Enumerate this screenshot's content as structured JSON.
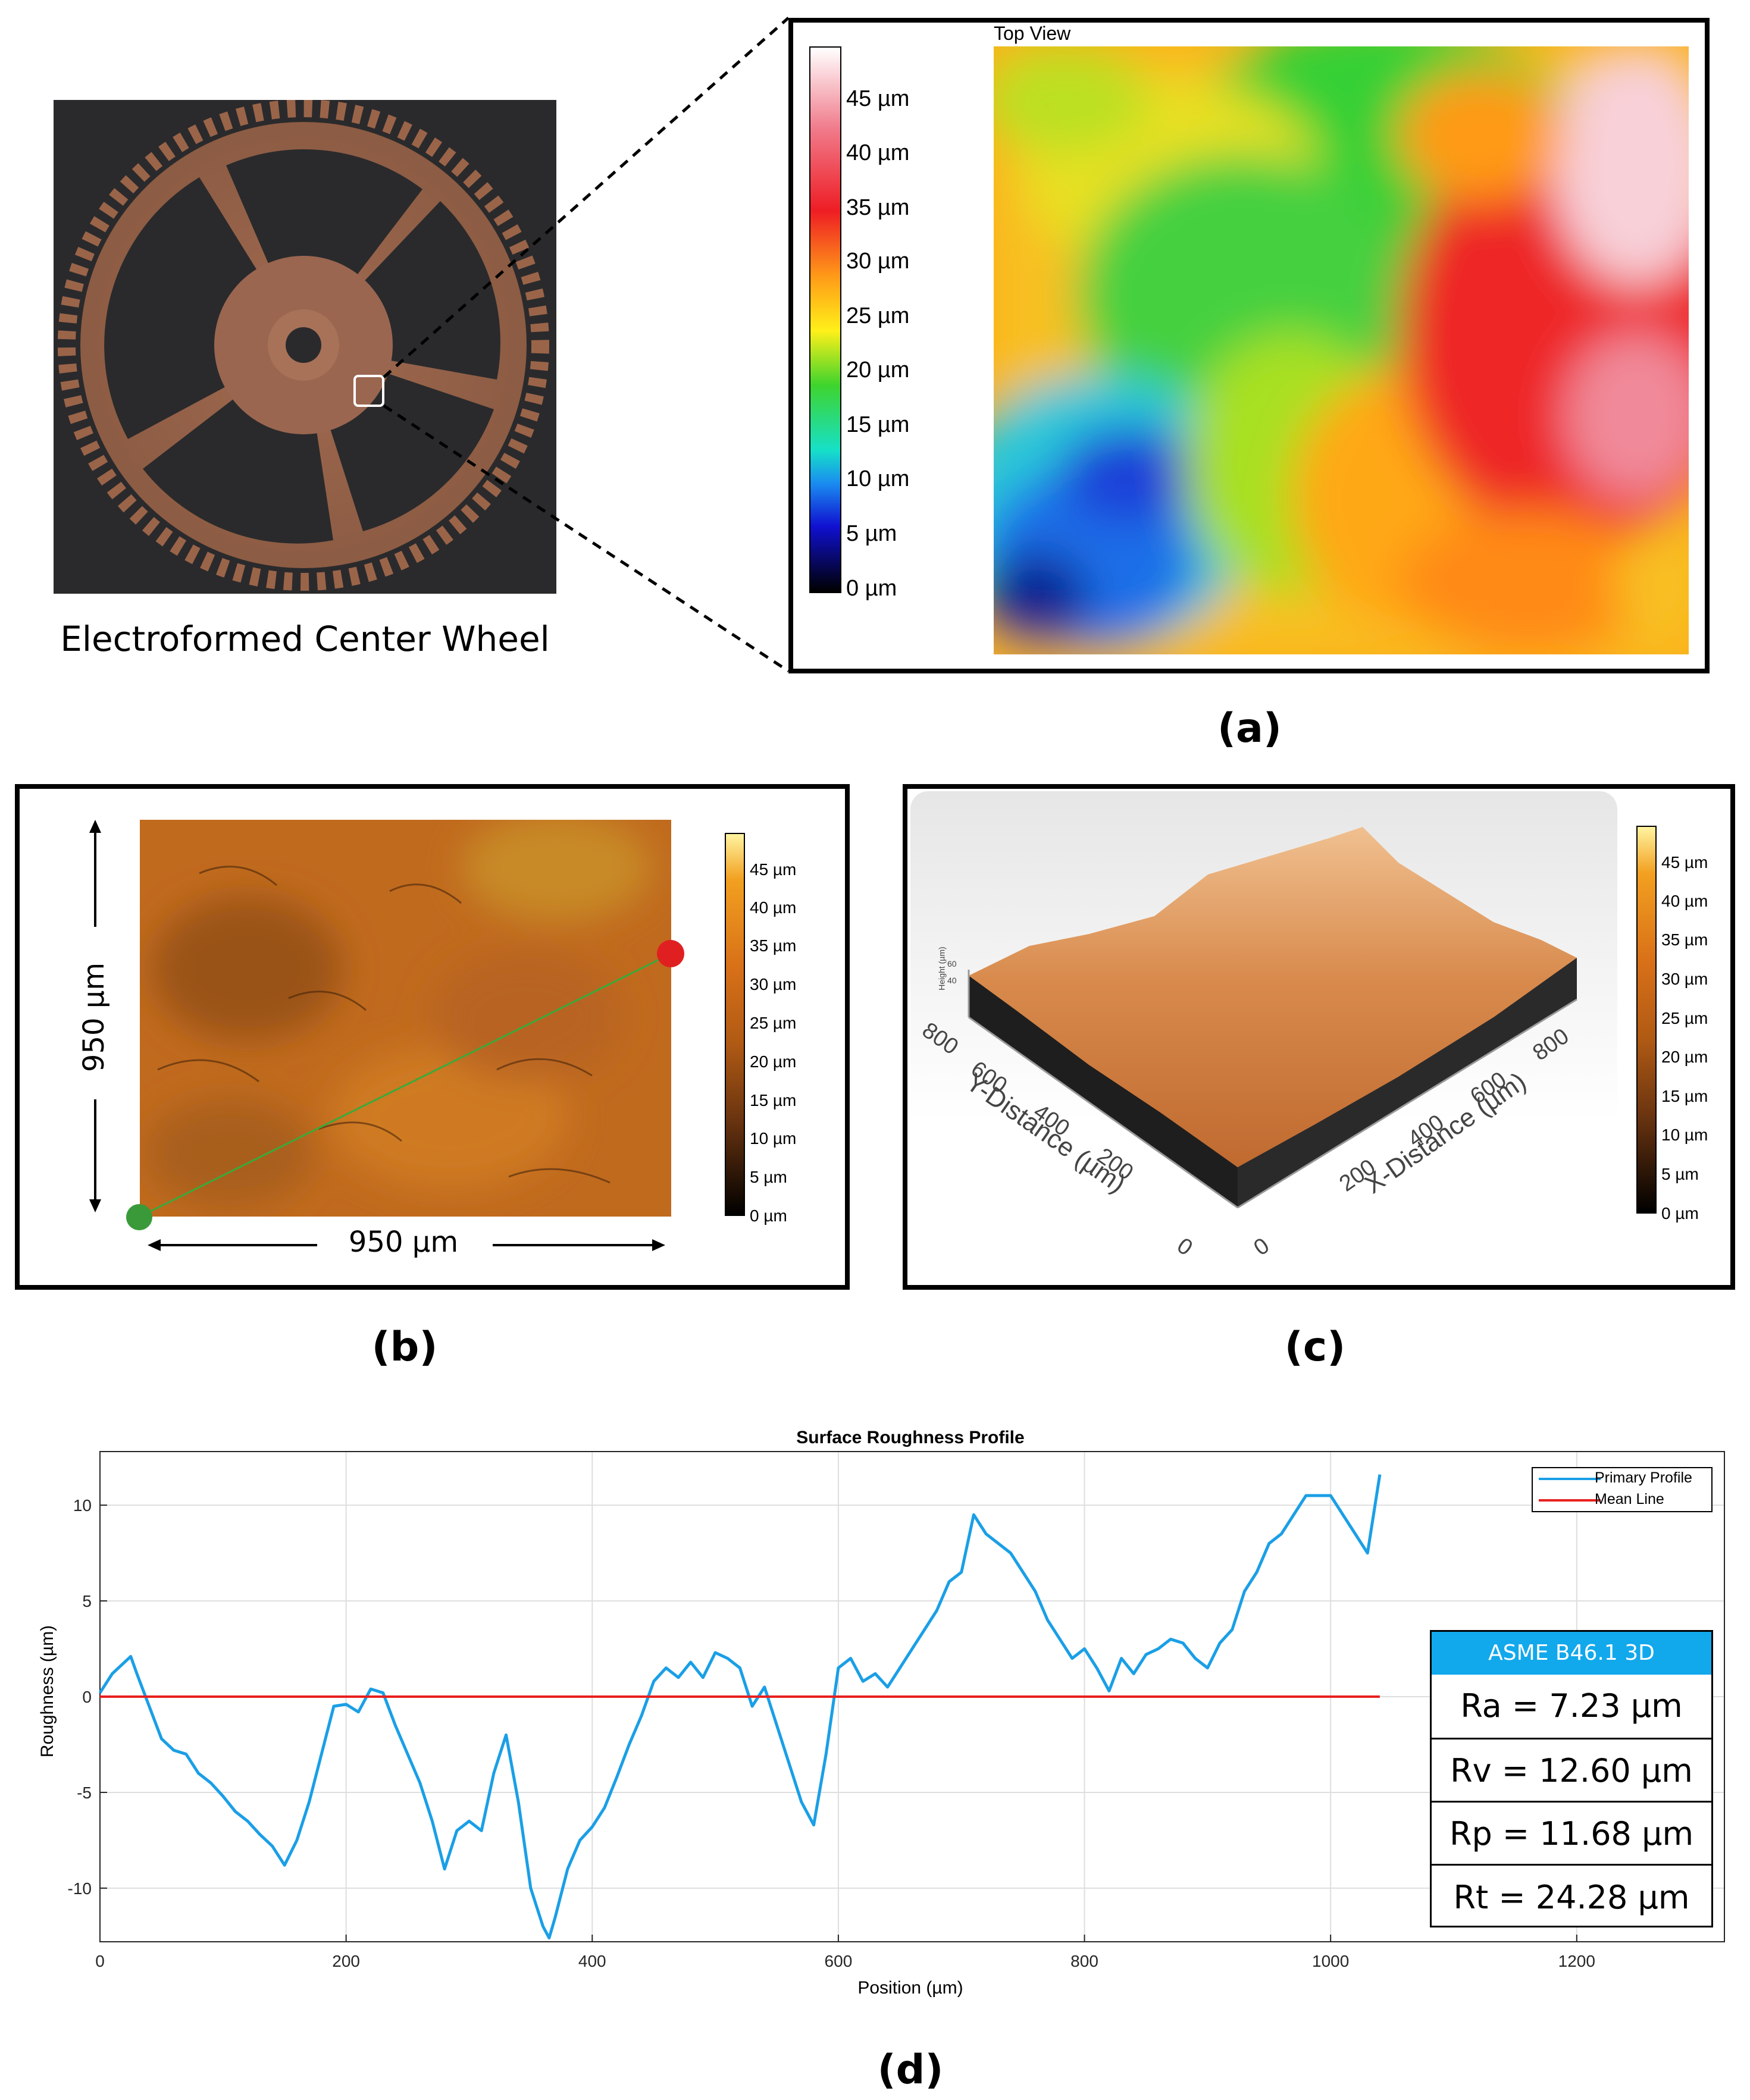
{
  "panel_a": {
    "gear_caption": "Electroformed Center Wheel",
    "map_title": "Top View",
    "colorbar_ticks": [
      "45 µm",
      "40 µm",
      "35 µm",
      "30 µm",
      "25 µm",
      "20 µm",
      "15 µm",
      "10 µm",
      "5 µm",
      "0 µm"
    ],
    "label": "(a)"
  },
  "panel_b": {
    "dim_vertical": "950 µm",
    "dim_horizontal": "950 µm",
    "colorbar_ticks": [
      "45 µm",
      "40 µm",
      "35 µm",
      "30 µm",
      "25 µm",
      "20 µm",
      "15 µm",
      "10 µm",
      "5 µm",
      "0 µm"
    ],
    "label": "(b)"
  },
  "panel_c": {
    "colorbar_ticks": [
      "45 µm",
      "40 µm",
      "35 µm",
      "30 µm",
      "25 µm",
      "20 µm",
      "15 µm",
      "10 µm",
      "5 µm",
      "0 µm"
    ],
    "y_axis_label": "Y-Distance (µm)",
    "x_axis_label": "X-Distance (µm)",
    "z_axis_label": "Height (µm)",
    "y_ticks": [
      "800",
      "600",
      "400",
      "200",
      "0"
    ],
    "x_ticks": [
      "0",
      "200",
      "400",
      "600",
      "800"
    ],
    "z_ticks": [
      "60",
      "40"
    ],
    "label": "(c)"
  },
  "panel_d": {
    "label": "(d)",
    "metrics_header": "ASME B46.1 3D",
    "metrics": [
      "Ra = 7.23 µm",
      "Rv = 12.60 µm",
      "Rp = 11.68 µm",
      "Rt = 24.28 µm"
    ]
  },
  "chart_data": {
    "type": "line",
    "title": "Surface Roughness Profile",
    "xlabel": "Position (µm)",
    "ylabel": "Roughness (µm)",
    "xlim": [
      0,
      1320
    ],
    "ylim": [
      -12.8,
      12.8
    ],
    "x_ticks": [
      0,
      200,
      400,
      600,
      800,
      1000,
      1200
    ],
    "y_ticks": [
      10,
      5,
      0,
      -5,
      -10
    ],
    "legend": [
      "Primary Profile",
      "Mean Line"
    ],
    "legend_position": "top-right",
    "colors": {
      "primary": "#1a9fe6",
      "mean": "#e8201f"
    },
    "series": [
      {
        "name": "Primary Profile",
        "x": [
          0,
          10,
          20,
          25,
          30,
          40,
          50,
          60,
          70,
          80,
          90,
          100,
          110,
          120,
          130,
          140,
          150,
          160,
          170,
          180,
          190,
          200,
          210,
          220,
          230,
          240,
          250,
          260,
          270,
          280,
          290,
          300,
          310,
          320,
          330,
          340,
          350,
          360,
          365,
          370,
          380,
          390,
          400,
          410,
          420,
          430,
          440,
          450,
          460,
          470,
          480,
          490,
          500,
          510,
          520,
          530,
          540,
          550,
          560,
          570,
          580,
          590,
          600,
          610,
          620,
          630,
          640,
          650,
          660,
          670,
          680,
          690,
          700,
          710,
          720,
          730,
          740,
          750,
          760,
          770,
          780,
          790,
          800,
          810,
          820,
          830,
          840,
          850,
          860,
          870,
          880,
          890,
          900,
          910,
          920,
          930,
          940,
          950,
          960,
          970,
          980,
          990,
          1000,
          1010,
          1020,
          1030,
          1040
        ],
        "values": [
          0.2,
          1.2,
          1.8,
          2.1,
          1.2,
          -0.5,
          -2.2,
          -2.8,
          -3.0,
          -4.0,
          -4.5,
          -5.2,
          -6.0,
          -6.5,
          -7.2,
          -7.8,
          -8.8,
          -7.5,
          -5.5,
          -3.0,
          -0.5,
          -0.4,
          -0.8,
          0.4,
          0.2,
          -1.5,
          -3.0,
          -4.5,
          -6.5,
          -9.0,
          -7.0,
          -6.5,
          -7.0,
          -4.0,
          -2.0,
          -5.5,
          -10.0,
          -12.0,
          -12.6,
          -11.5,
          -9.0,
          -7.5,
          -6.8,
          -5.8,
          -4.2,
          -2.5,
          -1.0,
          0.8,
          1.5,
          1.0,
          1.8,
          1.0,
          2.3,
          2.0,
          1.5,
          -0.5,
          0.5,
          -1.5,
          -3.5,
          -5.5,
          -6.7,
          -3.0,
          1.5,
          2.0,
          0.8,
          1.2,
          0.5,
          1.5,
          2.5,
          3.5,
          4.5,
          6.0,
          6.5,
          9.5,
          8.5,
          8.0,
          7.5,
          6.5,
          5.5,
          4.0,
          3.0,
          2.0,
          2.5,
          1.5,
          0.3,
          2.0,
          1.2,
          2.2,
          2.5,
          3.0,
          2.8,
          2.0,
          1.5,
          2.8,
          3.5,
          5.5,
          6.5,
          8.0,
          8.5,
          9.5,
          10.5,
          10.5,
          10.5,
          9.5,
          8.5,
          7.5,
          11.6
        ]
      },
      {
        "name": "Mean Line",
        "x": [
          0,
          1040
        ],
        "values": [
          0,
          0
        ]
      }
    ]
  }
}
